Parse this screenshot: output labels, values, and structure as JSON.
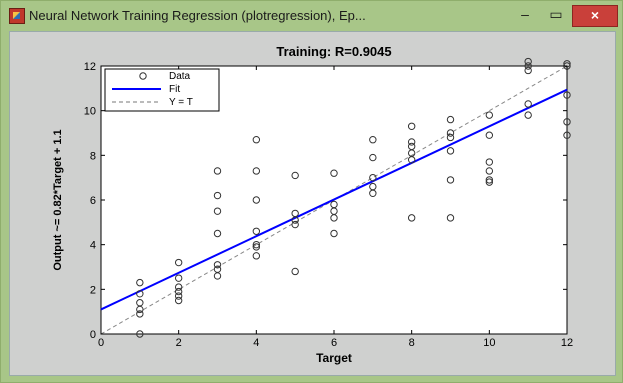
{
  "window": {
    "title": "Neural Network Training Regression (plotregression), Ep...",
    "min_glyph": "–",
    "max_glyph": "▭",
    "close_glyph": "×"
  },
  "colors": {
    "frame": "#a8c688",
    "fit": "#0000ff",
    "yt": "#888888",
    "data": "#333333"
  },
  "chart_data": {
    "type": "scatter",
    "title": "Training: R=0.9045",
    "xlabel": "Target",
    "ylabel": "Output ~= 0.82*Target + 1.1",
    "xlim": [
      0,
      12
    ],
    "ylim": [
      0,
      12
    ],
    "xticks": [
      "0",
      "2",
      "4",
      "6",
      "8",
      "10",
      "12"
    ],
    "yticks": [
      "0",
      "2",
      "4",
      "6",
      "8",
      "10",
      "12"
    ],
    "grid": false,
    "legend": {
      "position": "top-left",
      "entries": [
        "Data",
        "Fit",
        "Y = T"
      ]
    },
    "series": [
      {
        "name": "Data",
        "marker": "circle",
        "points": [
          [
            1,
            0
          ],
          [
            1,
            0.9
          ],
          [
            1,
            1.1
          ],
          [
            1,
            1.4
          ],
          [
            1,
            1.8
          ],
          [
            1,
            2.3
          ],
          [
            2,
            1.5
          ],
          [
            2,
            1.7
          ],
          [
            2,
            1.9
          ],
          [
            2,
            2.1
          ],
          [
            2,
            2.5
          ],
          [
            2,
            3.2
          ],
          [
            3,
            2.6
          ],
          [
            3,
            2.9
          ],
          [
            3,
            3.1
          ],
          [
            3,
            4.5
          ],
          [
            3,
            5.5
          ],
          [
            3,
            6.2
          ],
          [
            3,
            7.3
          ],
          [
            4,
            3.5
          ],
          [
            4,
            3.9
          ],
          [
            4,
            4.0
          ],
          [
            4,
            4.6
          ],
          [
            4,
            6.0
          ],
          [
            4,
            7.3
          ],
          [
            4,
            8.7
          ],
          [
            5,
            2.8
          ],
          [
            5,
            4.9
          ],
          [
            5,
            5.1
          ],
          [
            5,
            5.4
          ],
          [
            5,
            7.1
          ],
          [
            6,
            4.5
          ],
          [
            6,
            5.2
          ],
          [
            6,
            5.5
          ],
          [
            6,
            5.8
          ],
          [
            6,
            7.2
          ],
          [
            7,
            6.3
          ],
          [
            7,
            6.6
          ],
          [
            7,
            7.0
          ],
          [
            7,
            7.9
          ],
          [
            7,
            8.7
          ],
          [
            8,
            5.2
          ],
          [
            8,
            7.8
          ],
          [
            8,
            8.1
          ],
          [
            8,
            8.4
          ],
          [
            8,
            8.6
          ],
          [
            8,
            9.3
          ],
          [
            9,
            5.2
          ],
          [
            9,
            6.9
          ],
          [
            9,
            8.2
          ],
          [
            9,
            8.8
          ],
          [
            9,
            9.0
          ],
          [
            9,
            9.6
          ],
          [
            10,
            6.8
          ],
          [
            10,
            6.9
          ],
          [
            10,
            7.3
          ],
          [
            10,
            7.7
          ],
          [
            10,
            8.9
          ],
          [
            10,
            9.8
          ],
          [
            11,
            9.8
          ],
          [
            11,
            10.3
          ],
          [
            11,
            11.8
          ],
          [
            11,
            12.0
          ],
          [
            11,
            12.2
          ],
          [
            12,
            8.9
          ],
          [
            12,
            9.5
          ],
          [
            12,
            10.7
          ],
          [
            12,
            12.0
          ],
          [
            12,
            12.1
          ]
        ]
      },
      {
        "name": "Fit",
        "slope": 0.82,
        "intercept": 1.1
      },
      {
        "name": "Y = T",
        "slope": 1,
        "intercept": 0
      }
    ]
  }
}
